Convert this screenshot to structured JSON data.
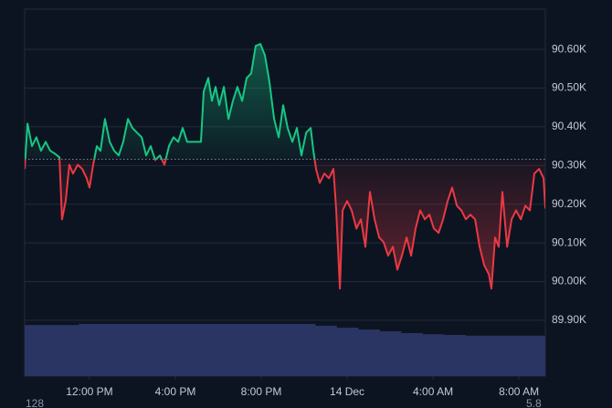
{
  "chart_data": {
    "type": "line",
    "x": [
      -3.02,
      -2.89,
      -2.68,
      -2.47,
      -2.26,
      -2.04,
      -1.83,
      -1.62,
      -1.4,
      -1.28,
      -1.11,
      -0.94,
      -0.77,
      -0.55,
      -0.34,
      -0.13,
      0,
      0.17,
      0.34,
      0.51,
      0.72,
      0.94,
      1.15,
      1.36,
      1.57,
      1.79,
      2.0,
      2.21,
      2.43,
      2.64,
      2.85,
      3.06,
      3.28,
      3.49,
      3.7,
      3.91,
      4.13,
      4.34,
      4.55,
      4.77,
      4.98,
      5.19,
      5.32,
      5.53,
      5.7,
      5.87,
      6.04,
      6.26,
      6.47,
      6.68,
      6.89,
      7.11,
      7.32,
      7.53,
      7.74,
      7.96,
      8.17,
      8.38,
      8.6,
      8.81,
      9.02,
      9.23,
      9.45,
      9.66,
      9.87,
      10.09,
      10.3,
      10.43,
      10.55,
      10.72,
      10.94,
      11.15,
      11.36,
      11.49,
      11.66,
      11.79,
      12.0,
      12.21,
      12.43,
      12.64,
      12.85,
      13.06,
      13.28,
      13.49,
      13.7,
      13.91,
      14.13,
      14.34,
      14.55,
      14.77,
      14.98,
      15.19,
      15.4,
      15.62,
      15.83,
      16.04,
      16.26,
      16.47,
      16.68,
      16.89,
      17.11,
      17.32,
      17.53,
      17.74,
      17.96,
      18.17,
      18.38,
      18.6,
      18.72,
      18.89,
      19.06,
      19.23,
      19.45,
      19.66,
      19.87,
      20.09,
      20.3,
      20.51,
      20.72,
      20.94,
      21.15,
      21.23
    ],
    "series": [
      {
        "color_up": "#16c784",
        "color_down": "#ea3943",
        "values": [
          90291,
          90408,
          90350,
          90373,
          90338,
          90361,
          90338,
          90331,
          90321,
          90161,
          90208,
          90302,
          90279,
          90302,
          90291,
          90267,
          90243,
          90302,
          90350,
          90338,
          90420,
          90361,
          90338,
          90326,
          90361,
          90420,
          90397,
          90385,
          90373,
          90326,
          90350,
          90314,
          90326,
          90302,
          90350,
          90373,
          90361,
          90397,
          90361,
          90361,
          90361,
          90361,
          90491,
          90526,
          90467,
          90503,
          90456,
          90503,
          90420,
          90467,
          90503,
          90467,
          90526,
          90538,
          90609,
          90614,
          90585,
          90515,
          90420,
          90373,
          90456,
          90397,
          90361,
          90397,
          90326,
          90385,
          90397,
          90338,
          90291,
          90255,
          90279,
          90267,
          90291,
          90184,
          89982,
          90184,
          90208,
          90184,
          90137,
          90161,
          90090,
          90232,
          90161,
          90114,
          90102,
          90067,
          90090,
          90031,
          90067,
          90114,
          90067,
          90137,
          90184,
          90161,
          90173,
          90137,
          90126,
          90161,
          90208,
          90243,
          90196,
          90184,
          90161,
          90173,
          90161,
          90090,
          90043,
          90019,
          89982,
          90114,
          90090,
          90232,
          90090,
          90161,
          90184,
          90161,
          90196,
          90184,
          90279,
          90291,
          90267,
          90189
        ]
      }
    ],
    "baseline": 90316,
    "volume": {
      "color": "#2b3563",
      "x": [
        -3,
        -2,
        -1,
        0,
        1,
        2,
        3,
        4,
        5,
        6,
        7,
        8,
        9,
        10,
        11,
        12,
        13,
        14,
        15,
        16,
        17,
        18,
        19,
        20,
        21
      ],
      "values": [
        13.9,
        13.9,
        13.9,
        14.2,
        14.2,
        14.2,
        14.2,
        14.2,
        14.2,
        14.2,
        14.2,
        14.2,
        14.2,
        14.2,
        13.7,
        13.2,
        12.7,
        12.2,
        11.7,
        11.4,
        11.2,
        11.0,
        11.0,
        11.0,
        11.0
      ]
    },
    "xlim": [
      -3.02,
      21.23
    ],
    "ylim": [
      89756,
      90704
    ],
    "y2lim": [
      0,
      100
    ],
    "xticks": [
      {
        "value": 0,
        "label": "12:00 PM"
      },
      {
        "value": 4,
        "label": "4:00 PM"
      },
      {
        "value": 8,
        "label": "8:00 PM"
      },
      {
        "value": 12,
        "label": "14 Dec"
      },
      {
        "value": 16,
        "label": "4:00 AM"
      },
      {
        "value": 20,
        "label": "8:00 AM"
      }
    ],
    "yticks": [
      {
        "value": 89900,
        "label": "89.90K"
      },
      {
        "value": 90000,
        "label": "90.00K"
      },
      {
        "value": 90100,
        "label": "90.10K"
      },
      {
        "value": 90200,
        "label": "90.20K"
      },
      {
        "value": 90300,
        "label": "90.30K"
      },
      {
        "value": 90400,
        "label": "90.40K"
      },
      {
        "value": 90500,
        "label": "90.50K"
      },
      {
        "value": 90600,
        "label": "90.60K"
      }
    ],
    "grid": true,
    "annotations": [
      "128",
      "5.8"
    ]
  }
}
